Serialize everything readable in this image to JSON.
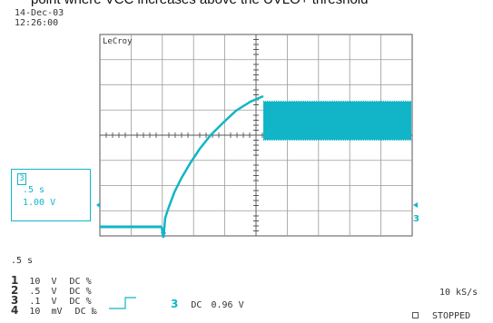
{
  "caption": "point where VCC increases above the UVLO+ threshold",
  "scope": {
    "date": "14-Dec-03",
    "time": "12:26:00",
    "brand": "LeCroy",
    "channel_marker": "3",
    "trace_color": "#12b5c7",
    "trace_box": {
      "channel": "3",
      "timebase": ".5 s",
      "volts": "1.00 V"
    },
    "timebase": ".5  s",
    "channels": [
      {
        "num": "1",
        "value": "10",
        "unit": "V",
        "coupling": "DC",
        "suffix": "%"
      },
      {
        "num": "2",
        "value": ".5",
        "unit": "V",
        "coupling": "DC",
        "suffix": "%"
      },
      {
        "num": "3",
        "value": ".1",
        "unit": "V",
        "coupling": "DC",
        "suffix": "%"
      },
      {
        "num": "4",
        "value": "10",
        "unit": "mV",
        "coupling": "DC",
        "suffix": "‰"
      }
    ],
    "trigger": {
      "channel": "3",
      "coupling": "DC",
      "level": "0.96 V"
    },
    "sample_rate": "10 kS/s",
    "status": "STOPPED"
  }
}
